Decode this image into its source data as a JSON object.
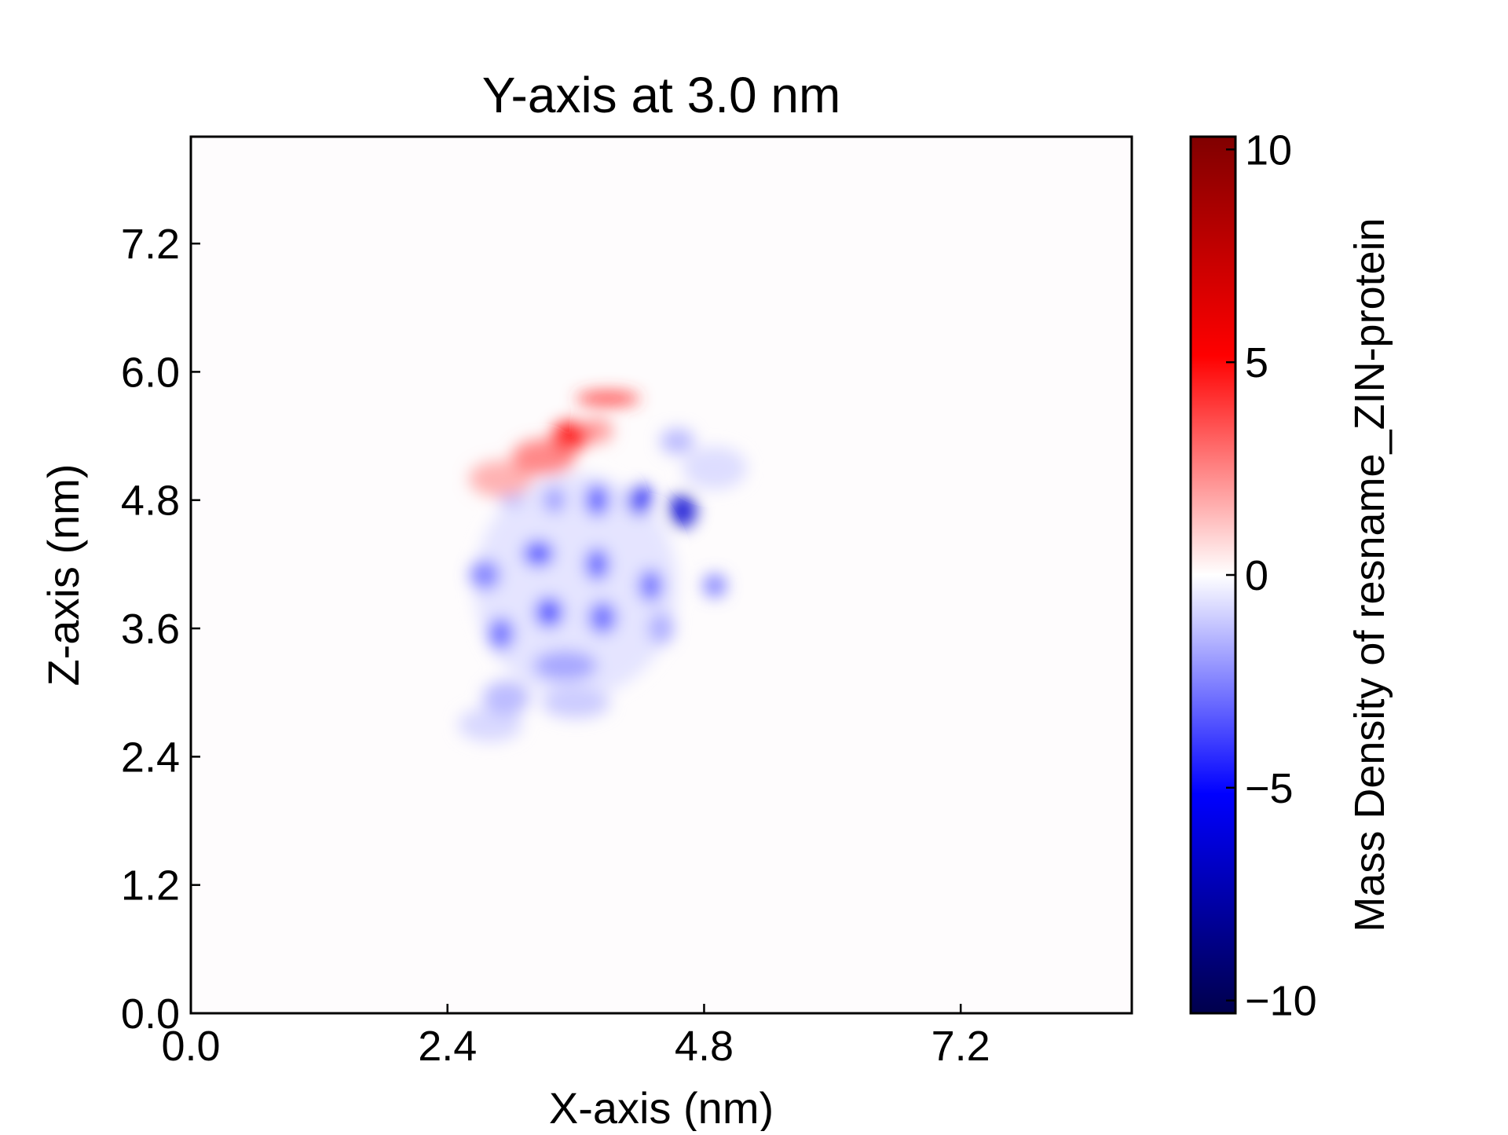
{
  "chart_data": {
    "type": "heatmap",
    "title": "Y-axis at 3.0 nm",
    "xlabel": "X-axis (nm)",
    "ylabel": "Z-axis (nm)",
    "xlim": [
      0,
      8.8
    ],
    "ylim": [
      0,
      8.2
    ],
    "xticks": [
      0.0,
      2.4,
      4.8,
      7.2
    ],
    "xtick_labels": [
      "0.0",
      "2.4",
      "4.8",
      "7.2"
    ],
    "yticks": [
      0.0,
      1.2,
      2.4,
      3.6,
      4.8,
      6.0,
      7.2
    ],
    "ytick_labels": [
      "0.0",
      "1.2",
      "2.4",
      "3.6",
      "4.8",
      "6.0",
      "7.2"
    ],
    "colorbar": {
      "label": "Mass Density of resname_ZIN-protein",
      "colormap": "seismic",
      "vmin": -10.3,
      "vmax": 10.3,
      "ticks": [
        10,
        5,
        0,
        -5,
        -10
      ],
      "tick_labels": [
        "10",
        "5",
        "0",
        "−5",
        "−10"
      ]
    },
    "background_value": 0,
    "grid": false,
    "blobs": [
      {
        "x": 2.9,
        "z": 5.0,
        "value": 1.8,
        "sx": 0.3,
        "sz": 0.17
      },
      {
        "x": 3.3,
        "z": 5.2,
        "value": 2.8,
        "sx": 0.3,
        "sz": 0.17
      },
      {
        "x": 3.55,
        "z": 5.4,
        "value": 5.2,
        "sx": 0.18,
        "sz": 0.14
      },
      {
        "x": 3.9,
        "z": 5.75,
        "value": 4.0,
        "sx": 0.3,
        "sz": 0.07
      },
      {
        "x": 3.8,
        "z": 5.45,
        "value": 2.2,
        "sx": 0.15,
        "sz": 0.12
      },
      {
        "x": 3.0,
        "z": 4.8,
        "value": -1.5,
        "sx": 0.12,
        "sz": 0.06
      },
      {
        "x": 3.4,
        "z": 4.8,
        "value": -2.2,
        "sx": 0.1,
        "sz": 0.12
      },
      {
        "x": 3.8,
        "z": 4.8,
        "value": -3.6,
        "sx": 0.11,
        "sz": 0.15
      },
      {
        "x": 4.2,
        "z": 4.8,
        "value": -5.5,
        "sx": 0.11,
        "sz": 0.14
      },
      {
        "x": 4.6,
        "z": 4.7,
        "value": -6.5,
        "sx": 0.13,
        "sz": 0.16
      },
      {
        "x": 4.55,
        "z": 5.35,
        "value": -1.6,
        "sx": 0.16,
        "sz": 0.12
      },
      {
        "x": 4.9,
        "z": 5.1,
        "value": -0.8,
        "sx": 0.3,
        "sz": 0.2
      },
      {
        "x": 2.75,
        "z": 4.1,
        "value": -2.8,
        "sx": 0.14,
        "sz": 0.14
      },
      {
        "x": 3.25,
        "z": 4.3,
        "value": -3.8,
        "sx": 0.14,
        "sz": 0.12
      },
      {
        "x": 3.8,
        "z": 4.2,
        "value": -3.5,
        "sx": 0.11,
        "sz": 0.15
      },
      {
        "x": 4.3,
        "z": 4.0,
        "value": -3.2,
        "sx": 0.11,
        "sz": 0.15
      },
      {
        "x": 4.9,
        "z": 4.0,
        "value": -2.8,
        "sx": 0.11,
        "sz": 0.11
      },
      {
        "x": 2.9,
        "z": 3.55,
        "value": -3.2,
        "sx": 0.12,
        "sz": 0.15
      },
      {
        "x": 3.35,
        "z": 3.75,
        "value": -3.8,
        "sx": 0.13,
        "sz": 0.14
      },
      {
        "x": 3.85,
        "z": 3.7,
        "value": -3.2,
        "sx": 0.13,
        "sz": 0.15
      },
      {
        "x": 4.4,
        "z": 3.6,
        "value": -1.8,
        "sx": 0.12,
        "sz": 0.15
      },
      {
        "x": 3.5,
        "z": 3.25,
        "value": -2.0,
        "sx": 0.3,
        "sz": 0.14
      },
      {
        "x": 2.95,
        "z": 2.95,
        "value": -1.6,
        "sx": 0.22,
        "sz": 0.16
      },
      {
        "x": 3.6,
        "z": 2.9,
        "value": -1.2,
        "sx": 0.32,
        "sz": 0.14
      },
      {
        "x": 2.8,
        "z": 2.7,
        "value": -0.9,
        "sx": 0.3,
        "sz": 0.16
      },
      {
        "x": 3.6,
        "z": 4.0,
        "value": -0.6,
        "sx": 0.95,
        "sz": 1.05
      }
    ]
  }
}
